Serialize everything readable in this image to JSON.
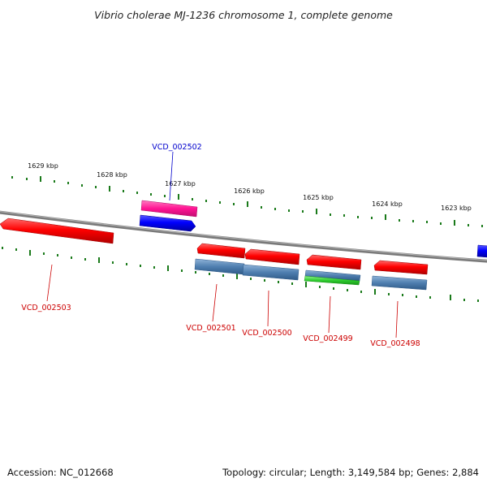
{
  "title": "Vibrio cholerae MJ-1236 chromosome 1, complete genome",
  "footer": {
    "accession": "Accession: NC_012668",
    "summary": "Topology: circular; Length: 3,149,584 bp; Genes: 2,884"
  },
  "scale_labels": [
    "1629 kbp",
    "1628 kbp",
    "1627 kbp",
    "1626 kbp",
    "1625 kbp",
    "1624 kbp",
    "1623 kbp"
  ],
  "gene_labels": {
    "top": "VCD_002502",
    "bottom": [
      "VCD_002503",
      "VCD_002501",
      "VCD_002500",
      "VCD_002499",
      "VCD_002498"
    ]
  },
  "colors": {
    "backbone": "#7a7a7a",
    "tick": "#1a7a1a",
    "gene_red": "#ff0000",
    "gene_blue": "#0000ff",
    "gene_magenta": "#ff1493",
    "cds_steelblue": "#4f7fb0",
    "cds_green": "#2ecc2e",
    "label_red": "#cc0000",
    "label_blue": "#0000cc"
  }
}
